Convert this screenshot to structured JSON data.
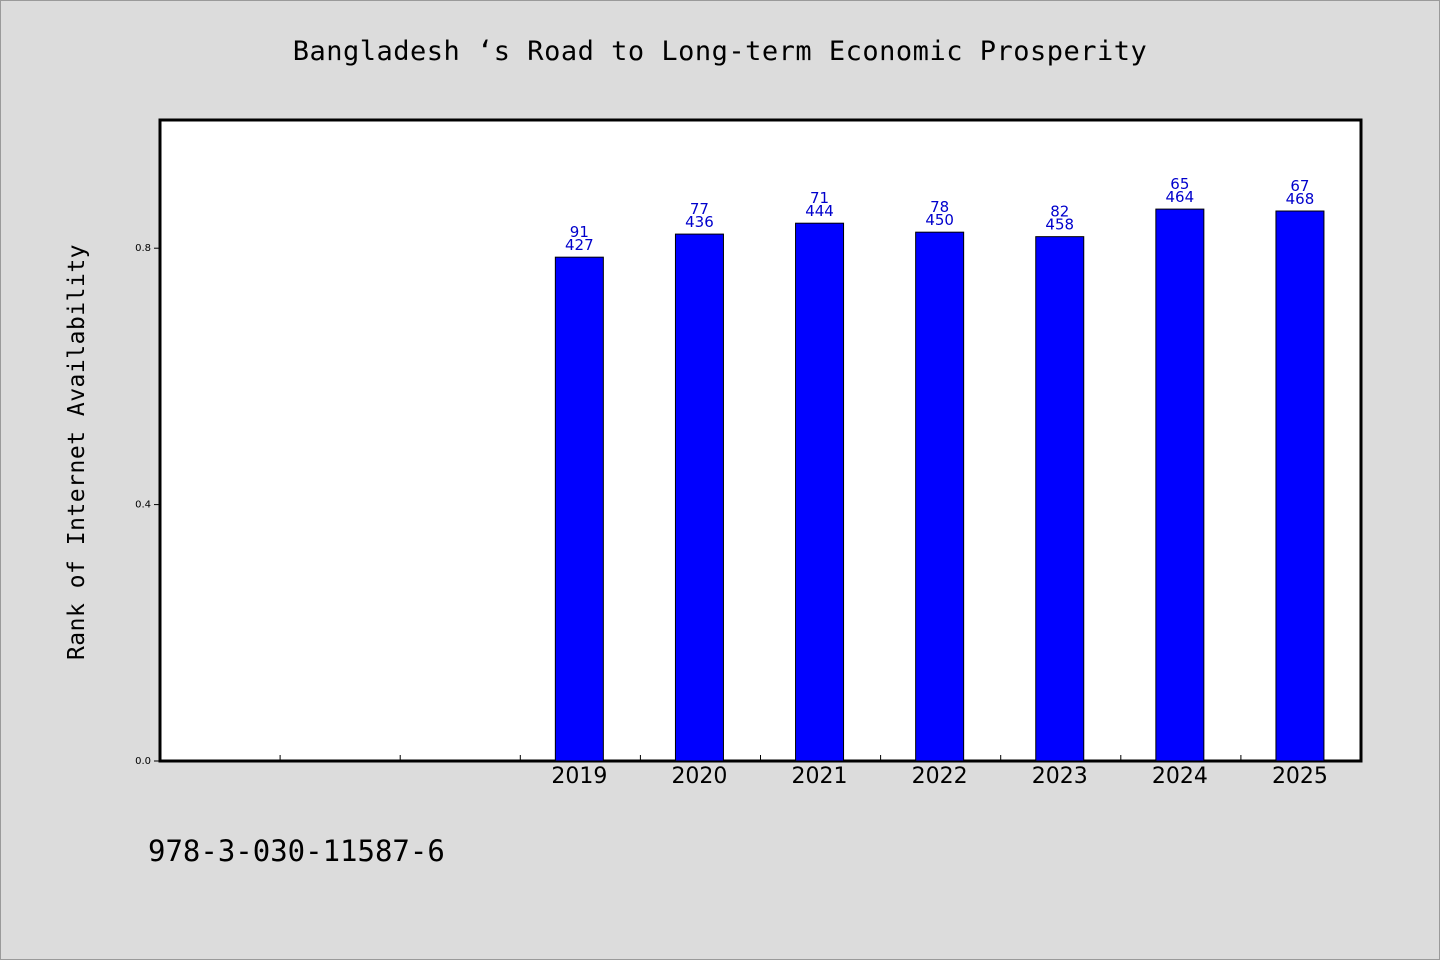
{
  "chart_data": {
    "type": "bar",
    "title": "Bangladesh ‘s Road to Long-term Economic Prosperity",
    "xlabel": "",
    "ylabel": "Rank of Internet Availability",
    "categories": [
      "",
      "",
      "",
      "2019",
      "2020",
      "2021",
      "2022",
      "2023",
      "2024",
      "2025"
    ],
    "values": [
      null,
      null,
      null,
      0.786,
      0.822,
      0.839,
      0.825,
      0.818,
      0.861,
      0.858
    ],
    "annotations": [
      null,
      null,
      null,
      {
        "top": "91",
        "bottom": "427"
      },
      {
        "top": "77",
        "bottom": "436"
      },
      {
        "top": "71",
        "bottom": "444"
      },
      {
        "top": "78",
        "bottom": "450"
      },
      {
        "top": "82",
        "bottom": "458"
      },
      {
        "top": "65",
        "bottom": "464"
      },
      {
        "top": "67",
        "bottom": "468"
      }
    ],
    "ylim": [
      0,
      1.0
    ],
    "yticks": [
      0.0,
      0.4,
      0.8
    ],
    "ytick_labels": [
      "0.0",
      "0.4",
      "0.8"
    ],
    "grid": false,
    "legend": "none",
    "colors": {
      "bar": "#0000ff",
      "bar_edge": "#000000",
      "data_label": "#0000cc",
      "frame": "#000000",
      "background": "#dcdcdc",
      "plot_bg": "#ffffff"
    }
  },
  "footnote": "978-3-030-11587-6"
}
